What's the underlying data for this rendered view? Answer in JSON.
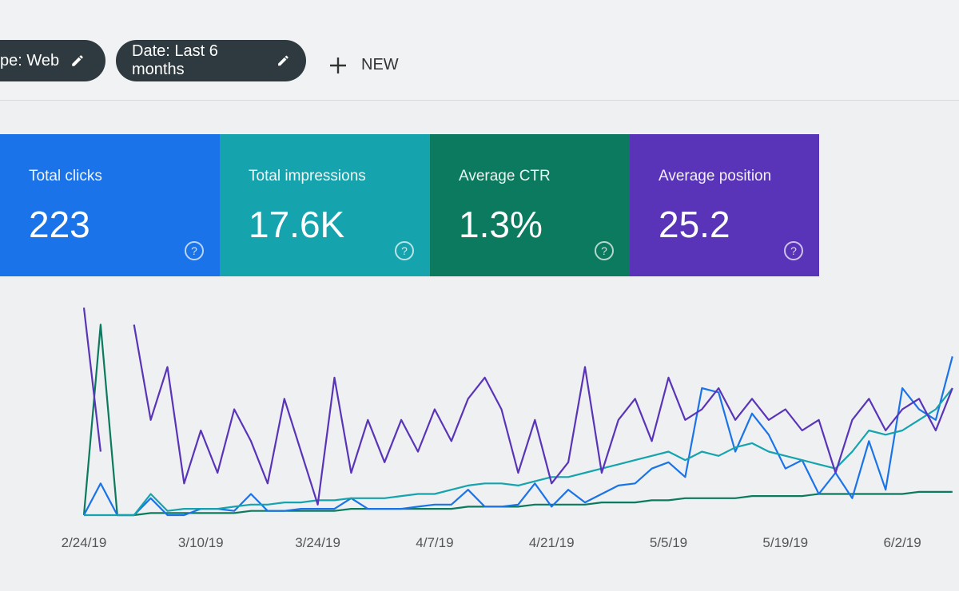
{
  "filters": [
    {
      "label": "ype: Web"
    },
    {
      "label": "Date: Last 6 months"
    }
  ],
  "new_button": "NEW",
  "cards": [
    {
      "label": "Total clicks",
      "value": "223",
      "color": "#1a73e8"
    },
    {
      "label": "Total impressions",
      "value": "17.6K",
      "color": "#15a3ae"
    },
    {
      "label": "Average CTR",
      "value": "1.3%",
      "color": "#0b7a5e"
    },
    {
      "label": "Average position",
      "value": "25.2",
      "color": "#5a34b8"
    }
  ],
  "chart_data": {
    "type": "line",
    "categories": [
      "2/24/19",
      null,
      null,
      null,
      null,
      null,
      null,
      "3/10/19",
      null,
      null,
      null,
      null,
      null,
      null,
      "3/24/19",
      null,
      null,
      null,
      null,
      null,
      null,
      "4/7/19",
      null,
      null,
      null,
      null,
      null,
      null,
      "4/21/19",
      null,
      null,
      null,
      null,
      null,
      null,
      "5/5/19",
      null,
      null,
      null,
      null,
      null,
      null,
      "5/19/19",
      null,
      null,
      null,
      null,
      null,
      null,
      "6/2/19",
      null,
      null,
      null
    ],
    "ylim": [
      0,
      100
    ],
    "series": [
      {
        "color": "#5a34b8",
        "values": [
          98,
          30,
          null,
          90,
          45,
          70,
          15,
          40,
          20,
          50,
          35,
          15,
          55,
          30,
          5,
          65,
          20,
          45,
          25,
          45,
          30,
          50,
          35,
          55,
          65,
          50,
          20,
          45,
          15,
          25,
          70,
          20,
          45,
          55,
          35,
          65,
          45,
          50,
          60,
          45,
          55,
          45,
          50,
          40,
          45,
          20,
          45,
          55,
          40,
          50,
          55,
          40,
          60
        ]
      },
      {
        "color": "#15a3ae",
        "values": [
          0,
          0,
          0,
          0,
          10,
          2,
          3,
          3,
          3,
          4,
          5,
          5,
          6,
          6,
          7,
          7,
          8,
          8,
          8,
          9,
          10,
          10,
          12,
          14,
          15,
          15,
          14,
          16,
          18,
          18,
          20,
          22,
          24,
          26,
          28,
          30,
          26,
          30,
          28,
          32,
          34,
          30,
          28,
          26,
          24,
          22,
          30,
          40,
          38,
          40,
          45,
          50,
          60
        ]
      },
      {
        "color": "#1a73e8",
        "values": [
          0,
          15,
          0,
          0,
          8,
          0,
          0,
          3,
          3,
          2,
          10,
          2,
          2,
          3,
          3,
          3,
          8,
          3,
          3,
          3,
          4,
          5,
          5,
          12,
          4,
          4,
          5,
          15,
          4,
          12,
          6,
          10,
          14,
          15,
          22,
          25,
          18,
          60,
          58,
          30,
          48,
          38,
          22,
          26,
          10,
          20,
          8,
          35,
          12,
          60,
          50,
          45,
          75
        ]
      },
      {
        "color": "#0b7a5e",
        "values": [
          0,
          90,
          0,
          0,
          1,
          1,
          1,
          1,
          1,
          1,
          2,
          2,
          2,
          2,
          2,
          2,
          3,
          3,
          3,
          3,
          3,
          3,
          3,
          4,
          4,
          4,
          4,
          5,
          5,
          5,
          5,
          6,
          6,
          6,
          7,
          7,
          8,
          8,
          8,
          8,
          9,
          9,
          9,
          9,
          10,
          10,
          10,
          10,
          10,
          10,
          11,
          11,
          11
        ]
      }
    ]
  }
}
